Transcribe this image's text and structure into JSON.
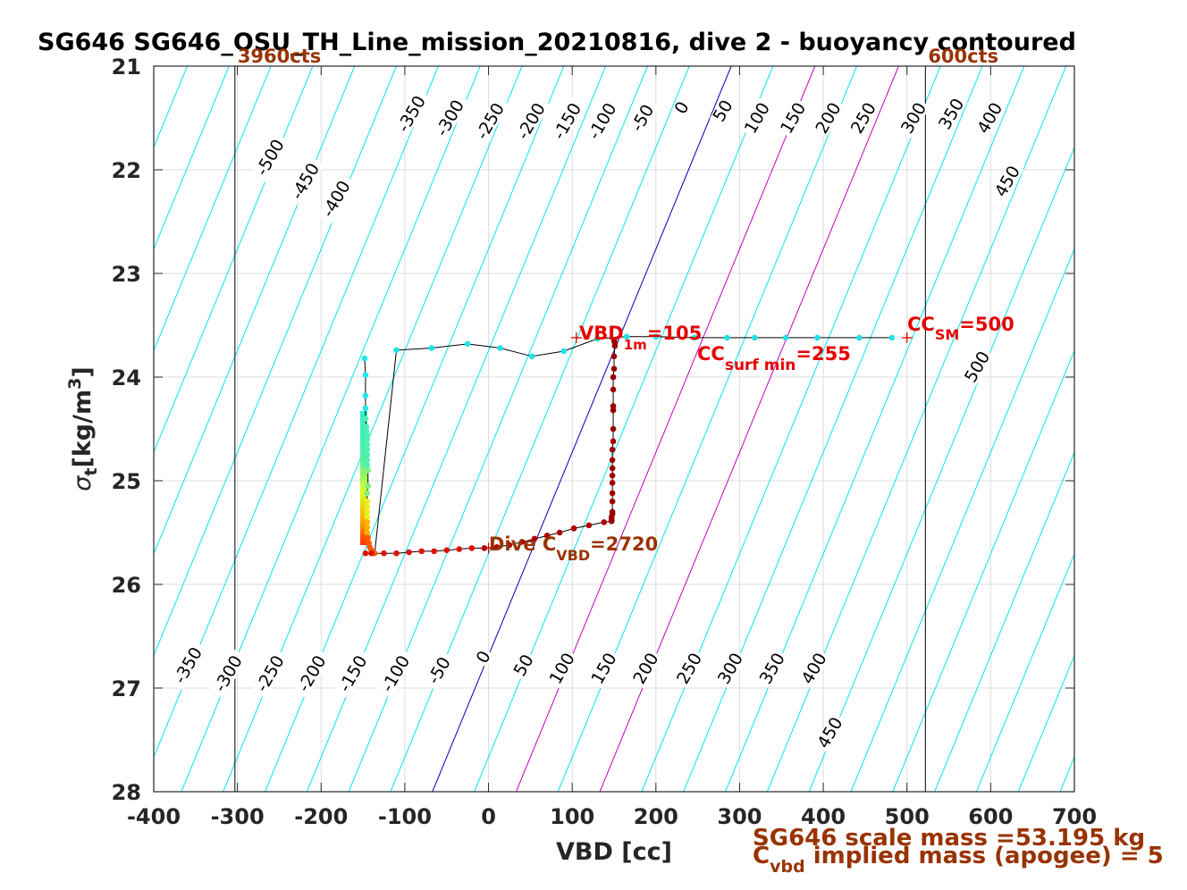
{
  "chart_data": {
    "type": "line",
    "title": "SG646 SG646_OSU_TH_Line_mission_20210816, dive 2 - buoyancy contoured",
    "xlabel": "VBD [cc]",
    "ylabel_symbol": "σ",
    "ylabel_sub": "t",
    "ylabel_unit": "[kg/m",
    "ylabel_sup": "3",
    "ylabel_close": "]",
    "xlim": [
      -400,
      700
    ],
    "ylim": [
      21,
      28
    ],
    "y_reversed": true,
    "grid": true,
    "xticks": [
      "-400",
      "-300",
      "-200",
      "-100",
      "0",
      "100",
      "200",
      "300",
      "400",
      "500",
      "600",
      "700"
    ],
    "yticks": [
      "21",
      "22",
      "23",
      "24",
      "25",
      "26",
      "27",
      "28"
    ],
    "contour_levels": [
      -1000,
      -950,
      -900,
      -850,
      -800,
      -750,
      -700,
      -650,
      -600,
      -550,
      -500,
      -450,
      -400,
      -350,
      -300,
      -250,
      -200,
      -150,
      -100,
      -50,
      0,
      50,
      100,
      150,
      200,
      250,
      300,
      350,
      400,
      450,
      500,
      550,
      600,
      650,
      700,
      750,
      800
    ],
    "contour_colors": {
      "default": "#00e5ee",
      "zero": "#0000b0",
      "surface": "#c000c0"
    },
    "upper_contour_labels": [
      {
        "text": "-500",
        "vbd": -257,
        "sigma": 21.9
      },
      {
        "text": "-450",
        "vbd": -215,
        "sigma": 22.13
      },
      {
        "text": "-400",
        "vbd": -178,
        "sigma": 22.3
      },
      {
        "text": "-350",
        "vbd": -88,
        "sigma": 21.48
      },
      {
        "text": "-300",
        "vbd": -42,
        "sigma": 21.52
      },
      {
        "text": "-250",
        "vbd": 6,
        "sigma": 21.55
      },
      {
        "text": "-200",
        "vbd": 55,
        "sigma": 21.55
      },
      {
        "text": "-150",
        "vbd": 98,
        "sigma": 21.55
      },
      {
        "text": "-100",
        "vbd": 140,
        "sigma": 21.55
      },
      {
        "text": "-50",
        "vbd": 188,
        "sigma": 21.52
      },
      {
        "text": "0",
        "vbd": 235,
        "sigma": 21.42
      },
      {
        "text": "50",
        "vbd": 284,
        "sigma": 21.45
      },
      {
        "text": "100",
        "vbd": 325,
        "sigma": 21.52
      },
      {
        "text": "150",
        "vbd": 368,
        "sigma": 21.52
      },
      {
        "text": "200",
        "vbd": 410,
        "sigma": 21.52
      },
      {
        "text": "250",
        "vbd": 452,
        "sigma": 21.52
      },
      {
        "text": "300",
        "vbd": 512,
        "sigma": 21.52
      },
      {
        "text": "350",
        "vbd": 557,
        "sigma": 21.48
      },
      {
        "text": "400",
        "vbd": 603,
        "sigma": 21.52
      },
      {
        "text": "450",
        "vbd": 624,
        "sigma": 22.13
      },
      {
        "text": "500",
        "vbd": 588,
        "sigma": 23.92
      }
    ],
    "lower_contour_labels": [
      {
        "text": "-350",
        "vbd": -355,
        "sigma": 26.8
      },
      {
        "text": "-300",
        "vbd": -307,
        "sigma": 26.88
      },
      {
        "text": "-250",
        "vbd": -257,
        "sigma": 26.88
      },
      {
        "text": "-200",
        "vbd": -207,
        "sigma": 26.88
      },
      {
        "text": "-150",
        "vbd": -158,
        "sigma": 26.88
      },
      {
        "text": "-100",
        "vbd": -107,
        "sigma": 26.88
      },
      {
        "text": "-50",
        "vbd": -55,
        "sigma": 26.85
      },
      {
        "text": "0",
        "vbd": -2,
        "sigma": 26.72
      },
      {
        "text": "50",
        "vbd": 46,
        "sigma": 26.8
      },
      {
        "text": "100",
        "vbd": 92,
        "sigma": 26.83
      },
      {
        "text": "150",
        "vbd": 142,
        "sigma": 26.83
      },
      {
        "text": "200",
        "vbd": 192,
        "sigma": 26.83
      },
      {
        "text": "250",
        "vbd": 244,
        "sigma": 26.83
      },
      {
        "text": "300",
        "vbd": 293,
        "sigma": 26.83
      },
      {
        "text": "350",
        "vbd": 343,
        "sigma": 26.83
      },
      {
        "text": "400",
        "vbd": 393,
        "sigma": 26.83
      },
      {
        "text": "450",
        "vbd": 412,
        "sigma": 27.45
      }
    ],
    "limit_lines": [
      {
        "vbd": -303,
        "label": "3960cts"
      },
      {
        "vbd": 522,
        "label": "600cts"
      }
    ],
    "series": [
      {
        "name": "climb",
        "x": [
          -148,
          -147,
          -147,
          -147,
          -147,
          -146,
          -146,
          -145,
          -145,
          -145,
          -145,
          -145,
          -145,
          -145,
          -144,
          -144,
          -145,
          -145,
          -145,
          -145,
          -145,
          -145,
          -145,
          -145,
          -144,
          -143,
          -142,
          -140,
          -138,
          -136,
          -110,
          -68,
          -25,
          14,
          52,
          90,
          130,
          165,
          200,
          246,
          285,
          318,
          355,
          393,
          443,
          482
        ],
        "y": [
          23.82,
          23.98,
          24.18,
          24.3,
          24.4,
          24.48,
          24.52,
          24.56,
          24.6,
          24.65,
          24.7,
          24.75,
          24.8,
          24.85,
          24.9,
          25.05,
          25.12,
          25.2,
          25.25,
          25.3,
          25.35,
          25.4,
          25.45,
          25.5,
          25.55,
          25.6,
          25.64,
          25.67,
          25.69,
          25.7,
          23.74,
          23.72,
          23.68,
          23.72,
          23.8,
          23.75,
          23.63,
          23.61,
          23.61,
          23.62,
          23.62,
          23.62,
          23.62,
          23.62,
          23.62,
          23.62
        ]
      },
      {
        "name": "dive",
        "x": [
          150,
          151,
          151,
          150,
          150,
          149,
          149,
          149,
          149,
          149,
          149,
          148,
          148,
          148,
          148,
          148,
          148,
          148,
          148,
          148,
          147,
          147,
          147,
          147,
          138,
          120,
          102,
          85,
          70,
          55,
          40,
          25,
          10,
          -5,
          -20,
          -35,
          -50,
          -65,
          -80,
          -95,
          -110,
          -125,
          -140,
          -147
        ],
        "y": [
          23.65,
          23.67,
          23.7,
          23.8,
          23.92,
          24.0,
          24.12,
          24.28,
          24.32,
          24.5,
          24.62,
          24.7,
          24.8,
          24.88,
          24.95,
          25.02,
          25.12,
          25.2,
          25.3,
          25.32,
          25.35,
          25.37,
          25.38,
          25.39,
          25.4,
          25.43,
          25.46,
          25.5,
          25.53,
          25.56,
          25.59,
          25.62,
          25.64,
          25.65,
          25.65,
          25.66,
          25.67,
          25.68,
          25.68,
          25.69,
          25.7,
          25.7,
          25.7,
          25.7
        ]
      }
    ],
    "markers": [
      {
        "vbd": 105,
        "sigma": 23.62,
        "color": "#e60000"
      },
      {
        "vbd": 500,
        "sigma": 23.62,
        "color": "#e60000"
      },
      {
        "vbd": 0,
        "sigma": 25.65,
        "color": "#e60000"
      }
    ],
    "annotations": {
      "vbd1m": {
        "pre": "VBD",
        "sub": "1m",
        "post": "=105"
      },
      "ccsurf": {
        "pre": "CC",
        "sub": "surf min",
        "post": "=255"
      },
      "ccsm": {
        "pre": "CC",
        "sub": "SM",
        "post": "=500"
      },
      "divec": {
        "pre": "Dive C",
        "sub": "VBD",
        "post": "=2720"
      }
    },
    "footer": {
      "line1": "SG646 scale mass =53.195 kg",
      "line2_pre": "C",
      "line2_sub": "vbd",
      "line2_post": " implied mass (apogee) = 5"
    }
  }
}
